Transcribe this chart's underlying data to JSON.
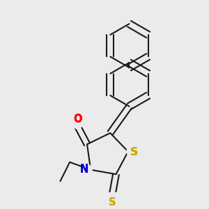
{
  "bg_color": "#ebebeb",
  "bond_color": "#1a1a1a",
  "bond_width": 1.5,
  "dbo": 0.018,
  "atom_colors": {
    "O": "#ff0000",
    "N": "#0000cc",
    "S": "#ccaa00"
  },
  "font_size": 10.5
}
